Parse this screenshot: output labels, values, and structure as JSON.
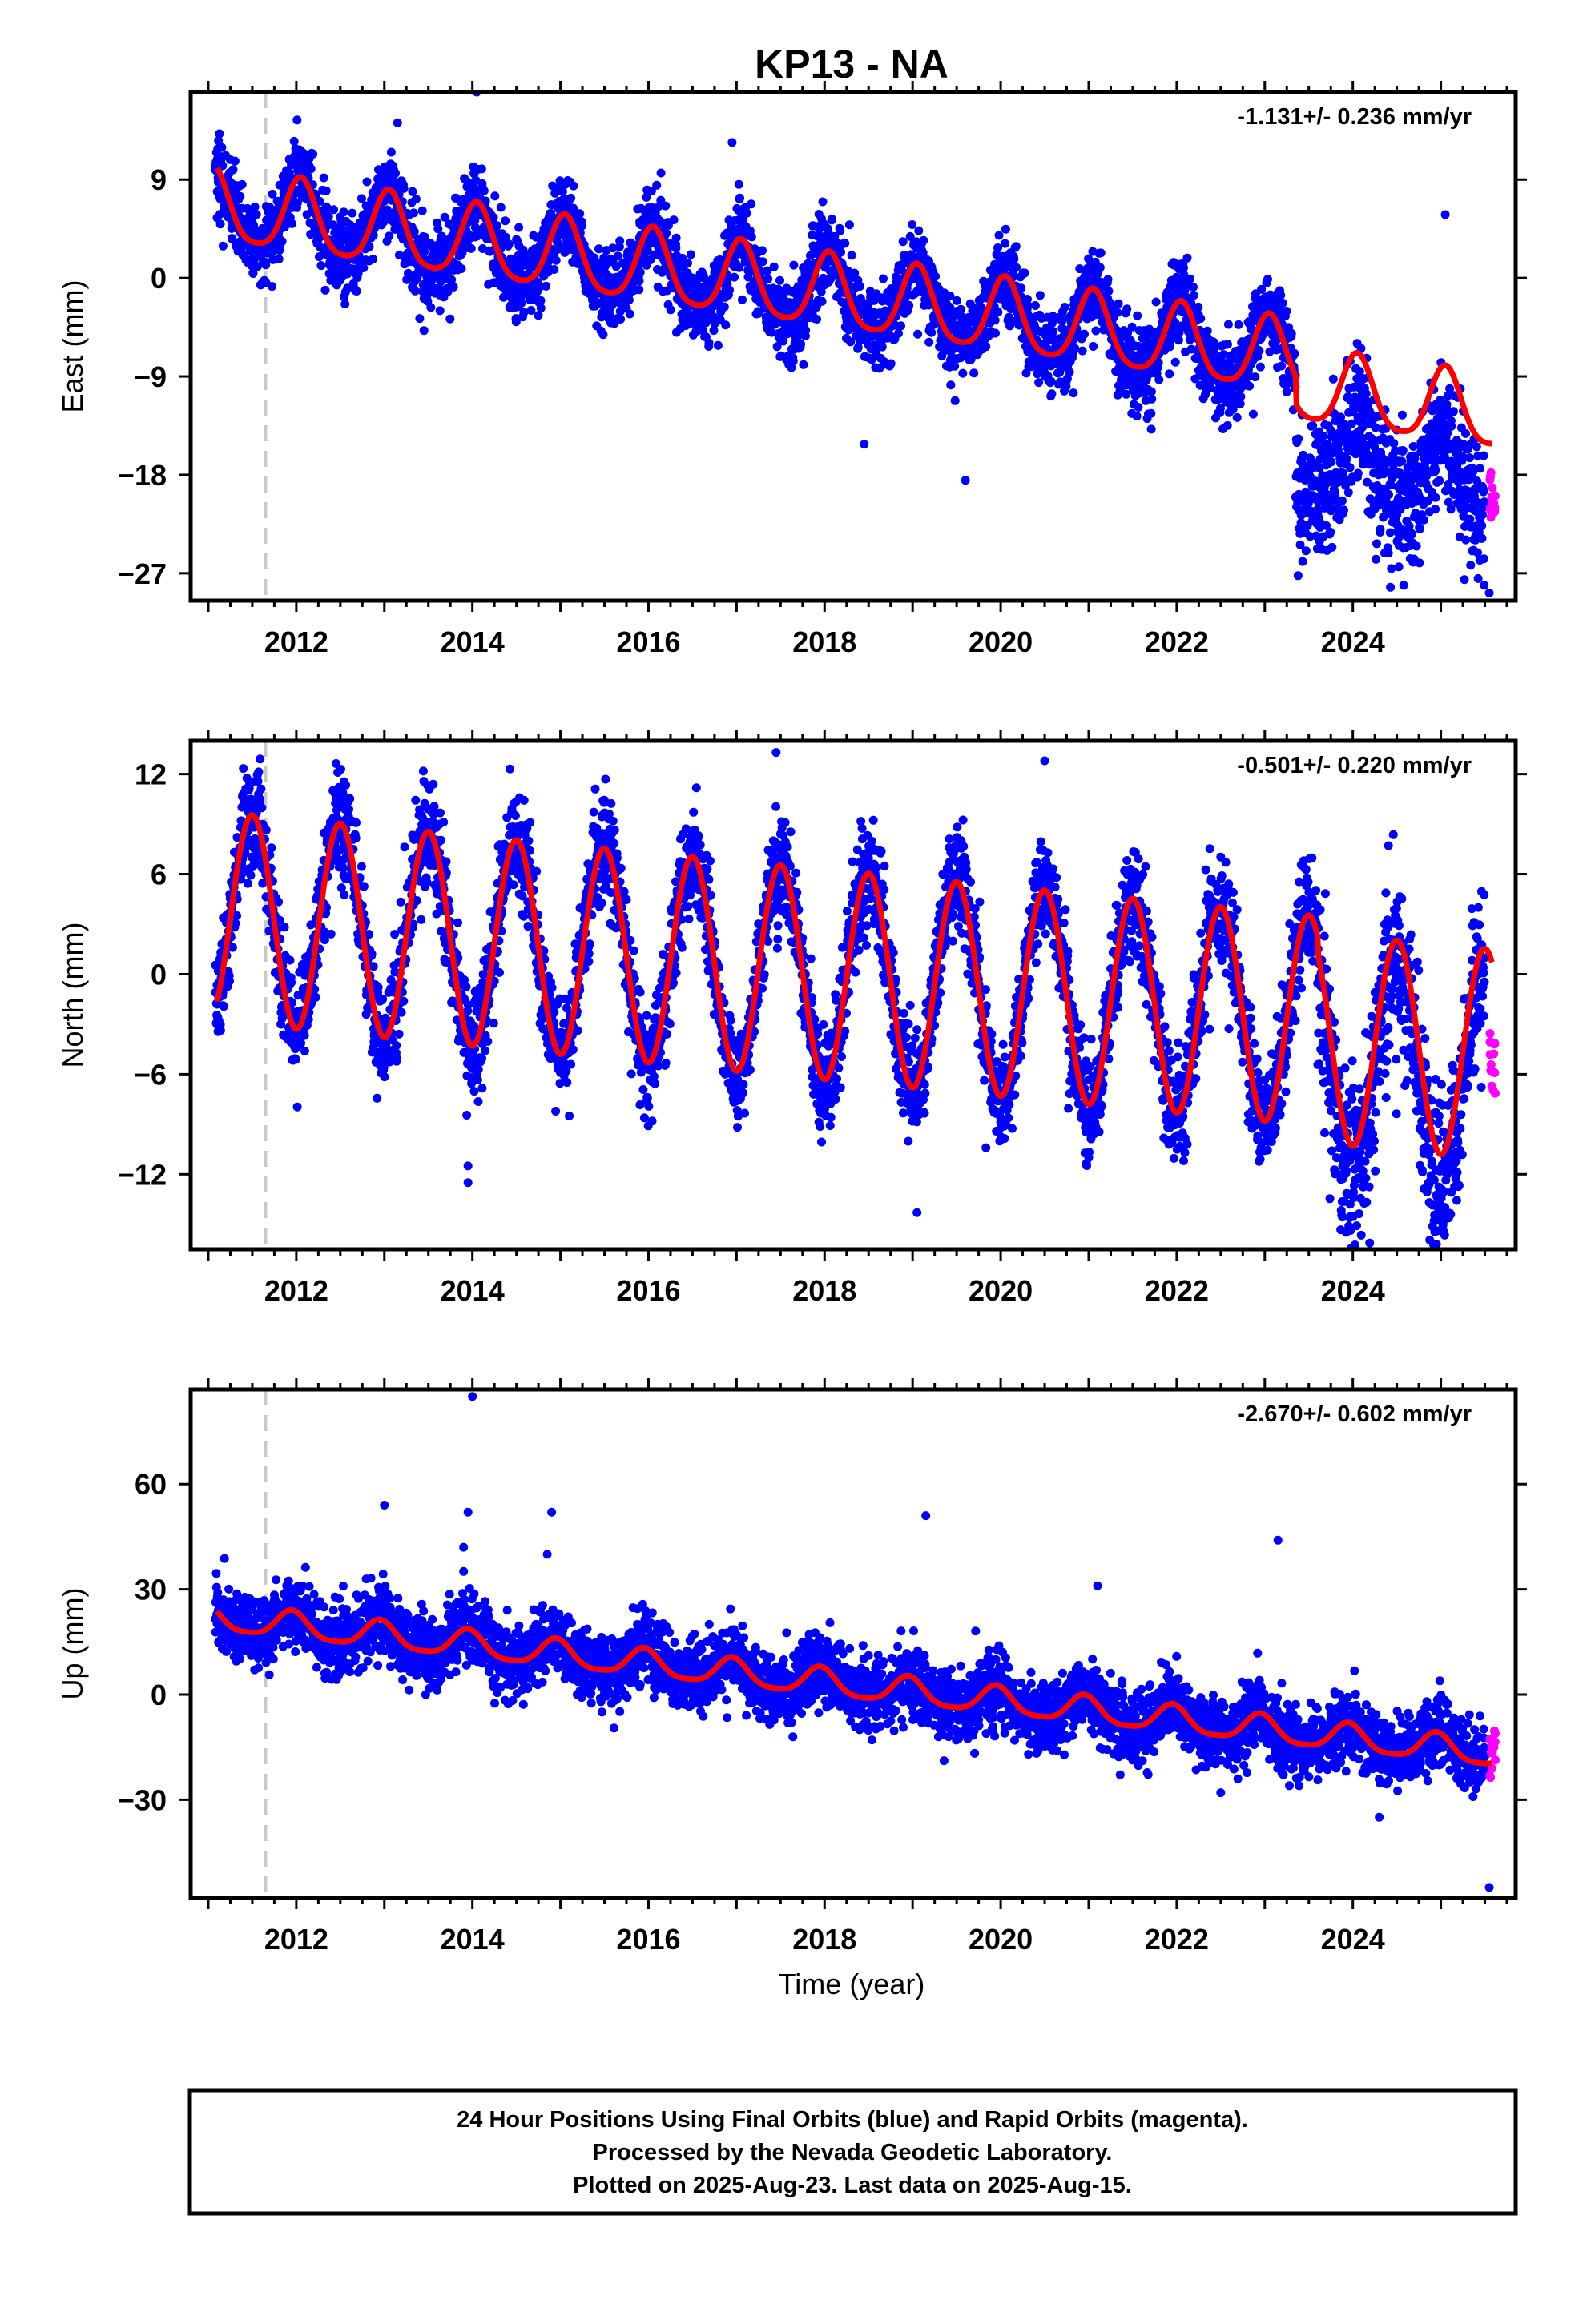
{
  "title": "KP13 - NA",
  "x_axis_label": "Time (year)",
  "footer": {
    "lines": [
      "24 Hour Positions Using Final Orbits (blue) and Rapid Orbits (magenta).",
      "Processed by the Nevada Geodetic Laboratory.",
      "Plotted on 2025-Aug-23. Last data on 2025-Aug-15."
    ]
  },
  "colors": {
    "final_orbits": "#0000ff",
    "rapid_orbits": "#ff00ff",
    "model": "#ff0000",
    "event_line": "#c8c8c8",
    "frame": "#000000"
  },
  "chart_data": [
    {
      "type": "scatter",
      "component": "East",
      "ylabel": "East (mm)",
      "rate_label": "-1.131+/- 0.236 mm/yr",
      "xlim": [
        2010.8,
        2025.85
      ],
      "ylim": [
        -29.5,
        17
      ],
      "xticks": [
        2012,
        2014,
        2016,
        2018,
        2020,
        2022,
        2024
      ],
      "yticks": [
        9,
        0,
        -9,
        -18,
        -27
      ],
      "ytick_labels": [
        "9",
        "0",
        "−9",
        "−18",
        "−27"
      ],
      "event_line_x": 2011.65,
      "model": {
        "start_offset": 6.3,
        "rate": -1.131,
        "annual_amp": 3.3,
        "annual_phase_year": 2012.05,
        "semiannual_amp": 0.6,
        "late_shift_year": 2023.35,
        "late_shift": -2.5
      },
      "scatter": {
        "start": 2011.08,
        "end": 2025.5,
        "noise": 1.8,
        "late_start": 2023.35,
        "late_offset": -6.5,
        "late_noise": 3.2
      },
      "rapid": {
        "start": 2025.55,
        "end": 2025.62,
        "center": -19.5,
        "spread": 2.5
      },
      "outliers": [
        [
          2011.1,
          5.5
        ],
        [
          2013.45,
          -4.8
        ],
        [
          2016.95,
          12.4
        ],
        [
          2018.45,
          -15.2
        ],
        [
          2019.6,
          -18.5
        ],
        [
          2025.05,
          5.8
        ],
        [
          2025.55,
          -28.8
        ],
        [
          2014.05,
          17.0
        ],
        [
          2013.15,
          14.2
        ]
      ]
    },
    {
      "type": "scatter",
      "component": "North",
      "ylabel": "North (mm)",
      "rate_label": "-0.501+/- 0.220 mm/yr",
      "xlim": [
        2010.8,
        2025.85
      ],
      "ylim": [
        -16.5,
        14
      ],
      "xticks": [
        2012,
        2014,
        2016,
        2018,
        2020,
        2022,
        2024
      ],
      "yticks": [
        12,
        6,
        0,
        -6,
        -12
      ],
      "ytick_labels": [
        "12",
        "6",
        "0",
        "−6",
        "−12"
      ],
      "event_line_x": 2011.65,
      "model": {
        "start_offset": 3.4,
        "rate": -0.501,
        "annual_amp": 6.3,
        "annual_phase_year": 2012.5,
        "semiannual_amp": 0.0,
        "late_shift_year": 2023.6,
        "late_shift": -1.0
      },
      "scatter": {
        "start": 2011.08,
        "end": 2025.5,
        "noise": 1.6,
        "late_start": 2023.6,
        "late_offset": -1.5,
        "late_noise": 2.6
      },
      "rapid": {
        "start": 2025.55,
        "end": 2025.62,
        "center": -5.2,
        "spread": 2.2
      },
      "outliers": [
        [
          2011.1,
          -1.8
        ],
        [
          2013.95,
          -11.5
        ],
        [
          2013.95,
          -12.5
        ],
        [
          2015.1,
          -8.5
        ],
        [
          2019.05,
          -14.3
        ],
        [
          2017.45,
          13.3
        ],
        [
          2020.5,
          12.8
        ],
        [
          2024.95,
          -16.2
        ],
        [
          2021.0,
          -11.0
        ]
      ]
    },
    {
      "type": "scatter",
      "component": "Up",
      "ylabel": "Up (mm)",
      "rate_label": "-2.670+/- 0.602 mm/yr",
      "xlim": [
        2010.8,
        2025.85
      ],
      "ylim": [
        -58,
        87
      ],
      "xticks": [
        2012,
        2014,
        2016,
        2018,
        2020,
        2022,
        2024
      ],
      "yticks": [
        60,
        30,
        0,
        -30
      ],
      "ytick_labels": [
        "60",
        "30",
        "0",
        "−30"
      ],
      "event_line_x": 2011.65,
      "model": {
        "start_offset": 21.5,
        "rate": -2.67,
        "annual_amp": 3.8,
        "annual_phase_year": 2012.95,
        "semiannual_amp": 0.8,
        "late_shift_year": 2099,
        "late_shift": 0
      },
      "scatter": {
        "start": 2011.08,
        "end": 2025.5,
        "noise": 5.0,
        "late_start": 2099,
        "late_offset": 0,
        "late_noise": 5.0
      },
      "rapid": {
        "start": 2025.55,
        "end": 2025.62,
        "center": -18,
        "spread": 8
      },
      "outliers": [
        [
          2011.1,
          26
        ],
        [
          2013.0,
          54
        ],
        [
          2014.0,
          85
        ],
        [
          2013.95,
          52
        ],
        [
          2013.9,
          42
        ],
        [
          2014.9,
          52
        ],
        [
          2014.85,
          40
        ],
        [
          2019.15,
          51
        ],
        [
          2023.15,
          44
        ],
        [
          2021.1,
          31
        ],
        [
          2025.55,
          -55
        ],
        [
          2022.5,
          -28
        ],
        [
          2024.3,
          -35
        ]
      ]
    }
  ]
}
